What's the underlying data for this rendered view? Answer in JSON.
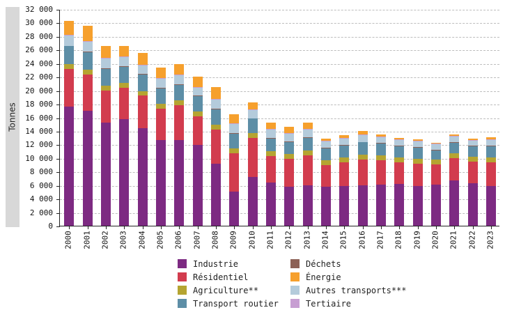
{
  "chart_data": {
    "type": "bar",
    "stacked": true,
    "title": "",
    "xlabel": "",
    "ylabel": "Tonnes",
    "ylim": [
      0,
      32000
    ],
    "y_tick_step": 2000,
    "y_tick_labels": [
      "0",
      "2 000",
      "4 000",
      "6 000",
      "8 000",
      "10 000",
      "12 000",
      "14 000",
      "16 000",
      "18 000",
      "20 000",
      "22 000",
      "24 000",
      "26 000",
      "28 000",
      "30 000",
      "32 000"
    ],
    "grid": true,
    "grid_style": "dashed",
    "categories": [
      "2000",
      "2001",
      "2002",
      "2003",
      "2004",
      "2005",
      "2006",
      "2007",
      "2008",
      "2009",
      "2010",
      "2011",
      "2012",
      "2013",
      "2014",
      "2015",
      "2016",
      "2017",
      "2018",
      "2019",
      "2020",
      "2021",
      "2022",
      "2023"
    ],
    "series": [
      {
        "name": "Industrie",
        "color": "#7d2a82",
        "values": [
          17600,
          17000,
          15200,
          15700,
          14400,
          12700,
          12700,
          11900,
          9200,
          5000,
          7200,
          6400,
          5800,
          6000,
          5800,
          5900,
          6000,
          6100,
          6200,
          5900,
          6100,
          6700,
          6300,
          5900
        ]
      },
      {
        "name": "Résidentiel",
        "color": "#d23c4e",
        "values": [
          5600,
          5300,
          4800,
          4700,
          4800,
          4600,
          5100,
          4300,
          5000,
          5700,
          5800,
          3900,
          4100,
          4400,
          3200,
          3500,
          3800,
          3600,
          3200,
          3300,
          3000,
          3300,
          3200,
          3500
        ]
      },
      {
        "name": "Agriculture**",
        "color": "#b5a431",
        "values": [
          700,
          700,
          700,
          700,
          700,
          700,
          700,
          700,
          700,
          700,
          700,
          700,
          700,
          700,
          700,
          700,
          700,
          700,
          700,
          700,
          700,
          700,
          700,
          700
        ]
      },
      {
        "name": "Transport routier",
        "color": "#5d8ea6",
        "values": [
          2600,
          2600,
          2500,
          2400,
          2400,
          2300,
          2300,
          2200,
          2300,
          2200,
          2100,
          1900,
          1800,
          1900,
          1700,
          1700,
          1800,
          1700,
          1600,
          1600,
          1300,
          1500,
          1500,
          1600
        ]
      },
      {
        "name": "Déchets",
        "color": "#8c6156",
        "values": [
          100,
          100,
          100,
          100,
          100,
          100,
          100,
          100,
          100,
          100,
          100,
          100,
          100,
          100,
          100,
          100,
          100,
          100,
          100,
          100,
          100,
          100,
          100,
          100
        ]
      },
      {
        "name": "Autres transports***",
        "color": "#b4cbdb",
        "values": [
          1500,
          1500,
          1400,
          1300,
          1300,
          1300,
          1300,
          1200,
          1300,
          1300,
          1200,
          1200,
          1100,
          1100,
          1000,
          1000,
          1000,
          900,
          900,
          900,
          800,
          900,
          800,
          900
        ]
      },
      {
        "name": "Tertiaire",
        "color": "#c79ed2",
        "values": [
          100,
          100,
          100,
          100,
          100,
          100,
          100,
          100,
          100,
          100,
          100,
          100,
          100,
          100,
          100,
          100,
          100,
          100,
          100,
          100,
          100,
          100,
          100,
          100
        ]
      },
      {
        "name": "Énergie",
        "color": "#f6a02d",
        "values": [
          2100,
          2200,
          1800,
          1600,
          1700,
          1600,
          1600,
          1500,
          1800,
          1400,
          1000,
          900,
          900,
          900,
          300,
          400,
          500,
          300,
          200,
          200,
          100,
          200,
          200,
          300
        ]
      }
    ],
    "legend": {
      "position": "bottom",
      "columns": [
        [
          "Industrie",
          "Résidentiel",
          "Agriculture**",
          "Transport routier"
        ],
        [
          "Déchets",
          "Énergie",
          "Autres transports***",
          "Tertiaire"
        ]
      ]
    }
  }
}
